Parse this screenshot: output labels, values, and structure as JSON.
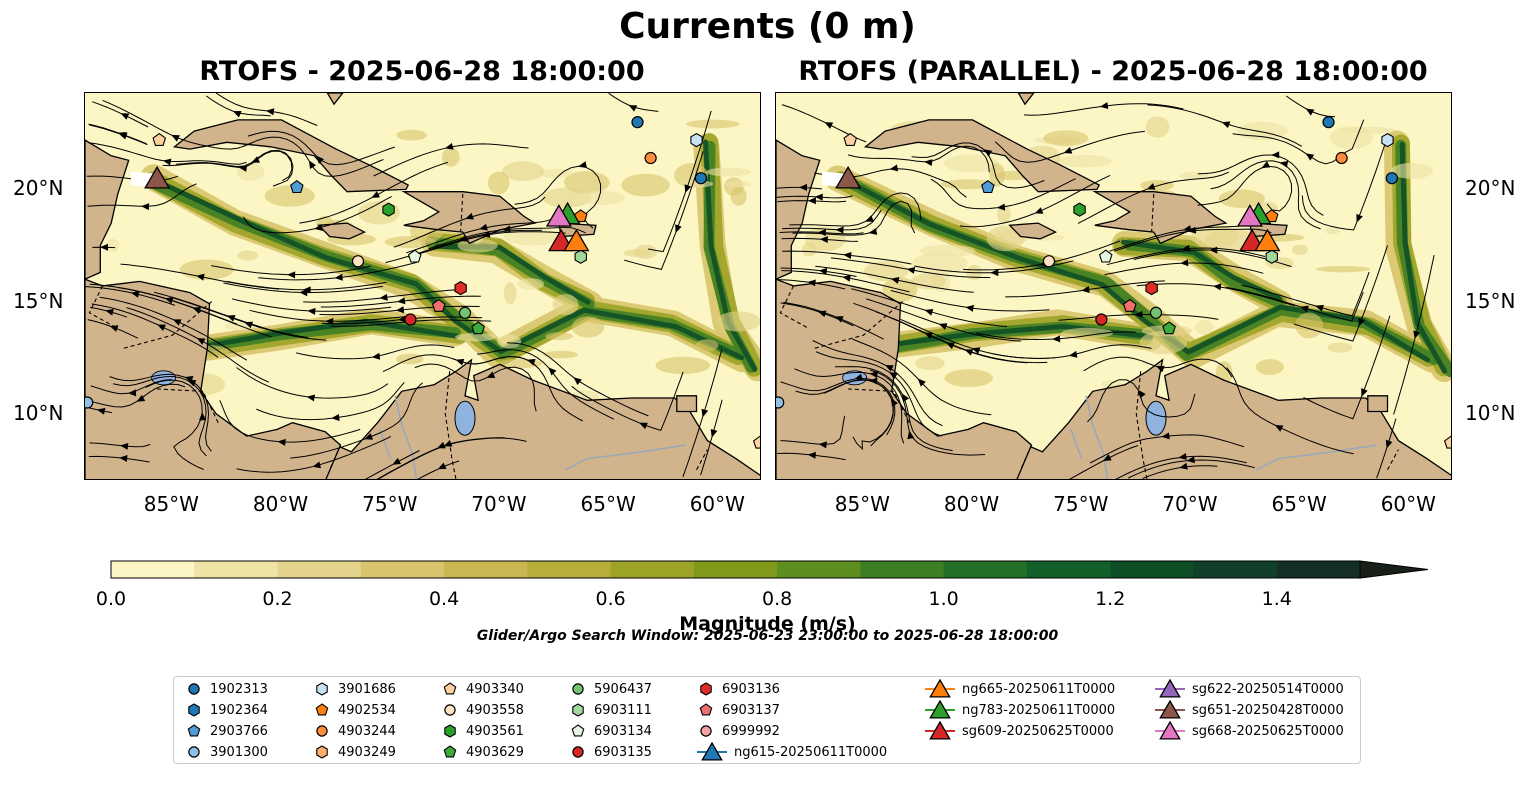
{
  "title": "Currents (0 m)",
  "panels": [
    {
      "title": "RTOFS - 2025-06-28 18:00:00"
    },
    {
      "title": "RTOFS (PARALLEL) - 2025-06-28 18:00:00"
    }
  ],
  "map_extent": {
    "lon": [
      -89,
      -58
    ],
    "lat": [
      7,
      24.3
    ]
  },
  "x_ticks": [
    "85°W",
    "80°W",
    "75°W",
    "70°W",
    "65°W",
    "60°W"
  ],
  "y_ticks": [
    "20°N",
    "15°N",
    "10°N"
  ],
  "colorbar": {
    "label": "Magnitude (m/s)",
    "ticks": [
      "0.0",
      "0.2",
      "0.4",
      "0.6",
      "0.8",
      "1.0",
      "1.2",
      "1.4"
    ],
    "range": [
      0,
      1.5
    ],
    "extend": "max",
    "colors": [
      "#fbf6c3",
      "#efe3a6",
      "#e4d38a",
      "#d8c46c",
      "#cbb751",
      "#b6ad3a",
      "#9ca327",
      "#80991a",
      "#5e8e1f",
      "#3f7f24",
      "#236f27",
      "#135f29",
      "#0f4f26",
      "#11402a",
      "#152f24",
      "#181f18"
    ]
  },
  "search_window": "Glider/Argo Search Window: 2025-06-23 23:00:00 to 2025-06-28 18:00:00",
  "colors": {
    "land": "#d2b48c",
    "lake": "#8fb3de",
    "river": "#9aa9b8"
  },
  "legend": [
    {
      "label": "1902313",
      "marker": "circle",
      "color": "#1f77b4"
    },
    {
      "label": "1902364",
      "marker": "hexagon",
      "color": "#1f77b4"
    },
    {
      "label": "2903766",
      "marker": "pentagon",
      "color": "#4f9bd6"
    },
    {
      "label": "3901300",
      "marker": "circle",
      "color": "#8fc0e6"
    },
    {
      "label": "3901686",
      "marker": "hexagon",
      "color": "#c8e2f5"
    },
    {
      "label": "4902534",
      "marker": "pentagon",
      "color": "#ff7f0e"
    },
    {
      "label": "4903244",
      "marker": "circle",
      "color": "#fd8d3c"
    },
    {
      "label": "4903249",
      "marker": "hexagon",
      "color": "#fdae6b"
    },
    {
      "label": "4903340",
      "marker": "pentagon",
      "color": "#fdd0a2"
    },
    {
      "label": "4903558",
      "marker": "circle",
      "color": "#fee0c4"
    },
    {
      "label": "4903561",
      "marker": "hexagon",
      "color": "#2ca02c"
    },
    {
      "label": "4903629",
      "marker": "pentagon",
      "color": "#3cab3c"
    },
    {
      "label": "5906437",
      "marker": "circle",
      "color": "#74c476"
    },
    {
      "label": "6903111",
      "marker": "hexagon",
      "color": "#a1d99b"
    },
    {
      "label": "6903134",
      "marker": "pentagon",
      "color": "#e5f5e0"
    },
    {
      "label": "6903135",
      "marker": "circle",
      "color": "#d62728"
    },
    {
      "label": "6903136",
      "marker": "hexagon",
      "color": "#de2d26"
    },
    {
      "label": "6903137",
      "marker": "pentagon",
      "color": "#ef6f6f"
    },
    {
      "label": "6999992",
      "marker": "circle",
      "color": "#f4a3a3"
    },
    {
      "label": "ng615-20250611T0000",
      "marker": "triangle",
      "color": "#1f77b4"
    },
    {
      "label": "ng665-20250611T0000",
      "marker": "triangle",
      "color": "#ff7f0e"
    },
    {
      "label": "ng783-20250611T0000",
      "marker": "triangle",
      "color": "#2ca02c"
    },
    {
      "label": "sg609-20250625T0000",
      "marker": "triangle",
      "color": "#d62728"
    },
    {
      "label": "sg622-20250514T0000",
      "marker": "triangle",
      "color": "#9467bd"
    },
    {
      "label": "sg651-20250428T0000",
      "marker": "triangle",
      "color": "#8c564b"
    },
    {
      "label": "sg668-20250625T0000",
      "marker": "triangle",
      "color": "#e377c2"
    }
  ],
  "observations": [
    {
      "id": "1902313",
      "lon": -63.7,
      "lat": 23.0
    },
    {
      "id": "1902313",
      "lon": -60.8,
      "lat": 20.5
    },
    {
      "id": "3901300",
      "lon": -88.9,
      "lat": 10.5
    },
    {
      "id": "3901686",
      "lon": -61.0,
      "lat": 22.2
    },
    {
      "id": "2903766",
      "lon": -79.3,
      "lat": 20.1
    },
    {
      "id": "4903244",
      "lon": -63.1,
      "lat": 21.4
    },
    {
      "id": "4903340",
      "lon": -85.6,
      "lat": 22.2
    },
    {
      "id": "4903340",
      "lon": -58.1,
      "lat": 8.7
    },
    {
      "id": "4903561",
      "lon": -75.1,
      "lat": 19.1
    },
    {
      "id": "4902534",
      "lon": -66.3,
      "lat": 18.8
    },
    {
      "id": "4903558",
      "lon": -76.5,
      "lat": 16.8
    },
    {
      "id": "6903134",
      "lon": -73.9,
      "lat": 17.0
    },
    {
      "id": "6903111",
      "lon": -66.3,
      "lat": 17.0
    },
    {
      "id": "6903137",
      "lon": -72.8,
      "lat": 14.8
    },
    {
      "id": "6903136",
      "lon": -71.8,
      "lat": 15.6
    },
    {
      "id": "6903135",
      "lon": -74.1,
      "lat": 14.2
    },
    {
      "id": "5906437",
      "lon": -71.6,
      "lat": 14.5
    },
    {
      "id": "4903629",
      "lon": -71.0,
      "lat": 13.8
    }
  ],
  "gliders": [
    {
      "id": "sg651-20250428T0000",
      "lon": -85.7,
      "lat": 20.5
    },
    {
      "id": "ng783-20250611T0000",
      "lon": -66.9,
      "lat": 18.9
    },
    {
      "id": "sg668-20250625T0000",
      "lon": -67.3,
      "lat": 18.8
    },
    {
      "id": "sg609-20250625T0000",
      "lon": -67.2,
      "lat": 17.7
    },
    {
      "id": "ng665-20250611T0000",
      "lon": -66.5,
      "lat": 17.7
    }
  ]
}
